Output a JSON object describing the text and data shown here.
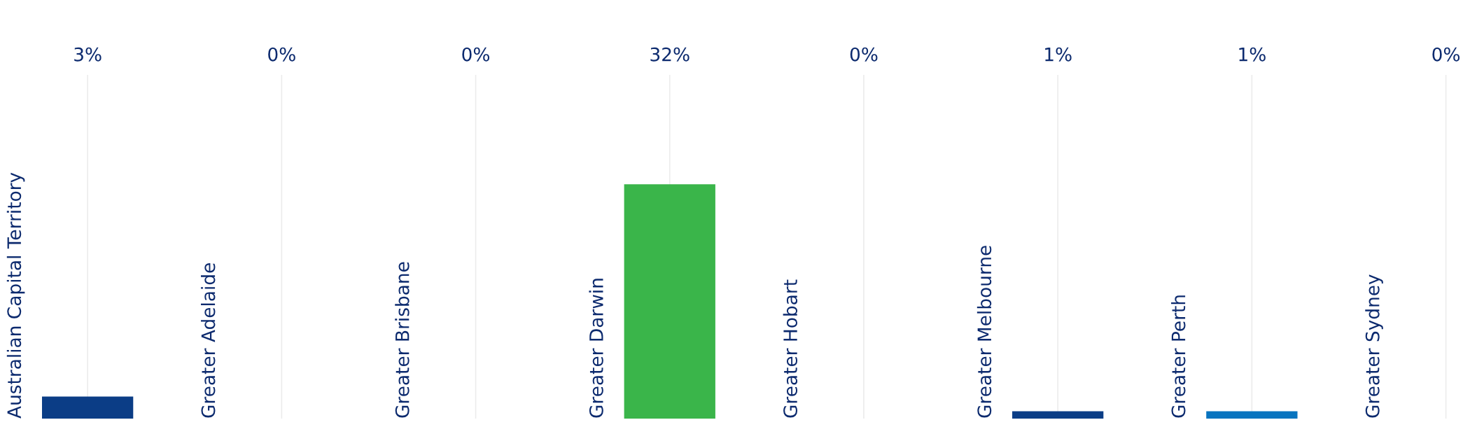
{
  "chart_data": {
    "type": "bar",
    "categories": [
      "Australian Capital Territory",
      "Greater Adelaide",
      "Greater Brisbane",
      "Greater Darwin",
      "Greater Hobart",
      "Greater Melbourne",
      "Greater Perth",
      "Greater Sydney"
    ],
    "values": [
      3,
      0,
      0,
      32,
      0,
      1,
      1,
      0
    ],
    "colors": [
      "#0b3d86",
      "#0b3d86",
      "#0b3d86",
      "#3ab54a",
      "#0b3d86",
      "#0b3d86",
      "#0874bf",
      "#0b3d86"
    ],
    "value_labels": [
      "3%",
      "0%",
      "0%",
      "32%",
      "0%",
      "1%",
      "1%",
      "0%"
    ],
    "grid": "x"
  }
}
